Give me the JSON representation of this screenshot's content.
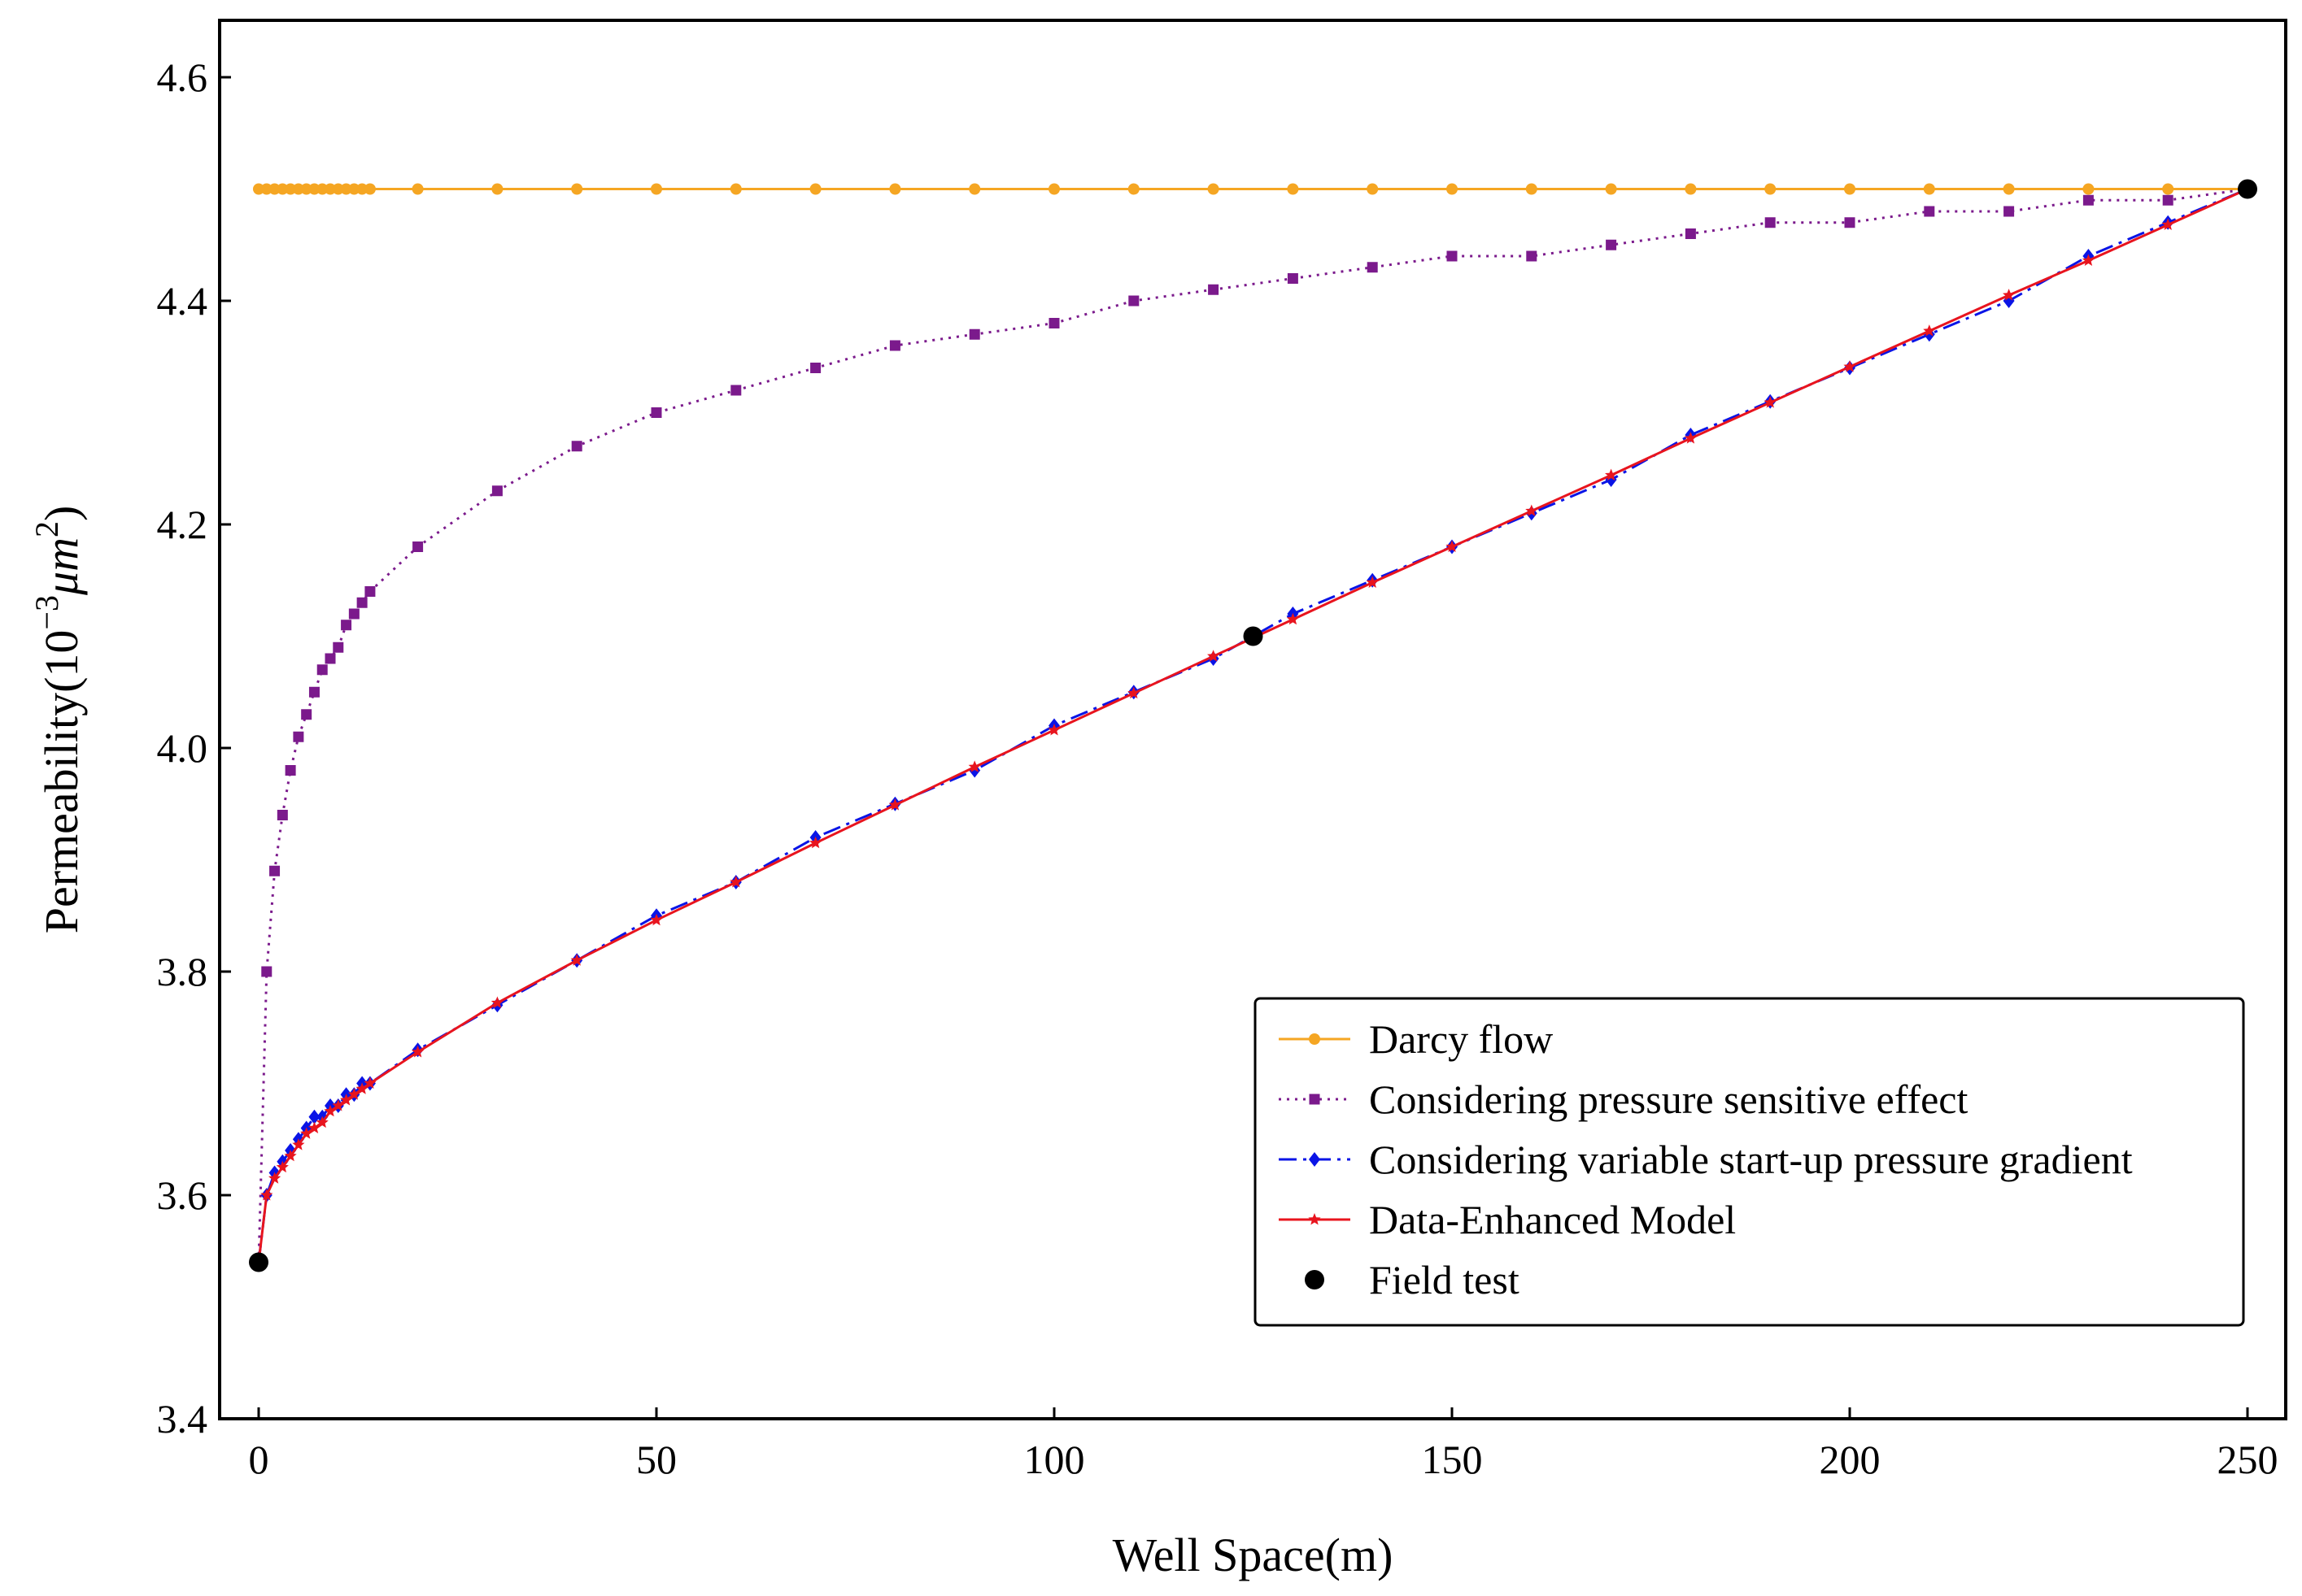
{
  "chart_data": {
    "type": "line",
    "xlabel": "Well Space(m)",
    "ylabel": {
      "prefix": "Permeability(10",
      "exp1": "−3",
      "unit": "μm",
      "exp2": "2",
      "suffix": ")"
    },
    "xlim": [
      -5,
      255
    ],
    "ylim": [
      3.4,
      4.65
    ],
    "xticks": [
      0,
      50,
      100,
      150,
      200,
      250
    ],
    "xtick_labels": [
      "0",
      "50",
      "100",
      "150",
      "200",
      "250"
    ],
    "yticks": [
      3.4,
      3.6,
      3.8,
      4.0,
      4.2,
      4.4,
      4.6
    ],
    "ytick_labels": [
      "3.4",
      "3.6",
      "3.8",
      "4.0",
      "4.2",
      "4.4",
      "4.6"
    ],
    "legend_position": "lower-right",
    "series": [
      {
        "name": "Darcy flow",
        "color": "#f5a623",
        "line_style": "solid",
        "marker": "circle",
        "x": [
          0,
          1,
          2,
          3,
          4,
          5,
          6,
          7,
          8,
          9,
          10,
          11,
          12,
          13,
          14,
          20,
          30,
          40,
          50,
          60,
          70,
          80,
          90,
          100,
          110,
          120,
          130,
          140,
          150,
          160,
          170,
          180,
          190,
          200,
          210,
          220,
          230,
          240,
          250
        ],
        "y": [
          4.5,
          4.5,
          4.5,
          4.5,
          4.5,
          4.5,
          4.5,
          4.5,
          4.5,
          4.5,
          4.5,
          4.5,
          4.5,
          4.5,
          4.5,
          4.5,
          4.5,
          4.5,
          4.5,
          4.5,
          4.5,
          4.5,
          4.5,
          4.5,
          4.5,
          4.5,
          4.5,
          4.5,
          4.5,
          4.5,
          4.5,
          4.5,
          4.5,
          4.5,
          4.5,
          4.5,
          4.5,
          4.5,
          4.5
        ]
      },
      {
        "name": "Considering pressure sensitive effect",
        "color": "#7b1a8c",
        "line_style": "dotted",
        "marker": "square",
        "x": [
          0,
          1,
          2,
          3,
          4,
          5,
          6,
          7,
          8,
          9,
          10,
          11,
          12,
          13,
          14,
          20,
          30,
          40,
          50,
          60,
          70,
          80,
          90,
          100,
          110,
          120,
          130,
          140,
          150,
          160,
          170,
          180,
          190,
          200,
          210,
          220,
          230,
          240,
          250
        ],
        "y": [
          3.54,
          3.8,
          3.89,
          3.94,
          3.98,
          4.01,
          4.03,
          4.05,
          4.07,
          4.08,
          4.09,
          4.11,
          4.12,
          4.13,
          4.14,
          4.18,
          4.23,
          4.27,
          4.3,
          4.32,
          4.34,
          4.36,
          4.37,
          4.38,
          4.4,
          4.41,
          4.42,
          4.43,
          4.44,
          4.44,
          4.45,
          4.46,
          4.47,
          4.47,
          4.48,
          4.48,
          4.49,
          4.49,
          4.5
        ]
      },
      {
        "name": "Considering variable start-up pressure gradient",
        "color": "#0a14e6",
        "line_style": "dashdot",
        "marker": "diamond",
        "x": [
          0,
          1,
          2,
          3,
          4,
          5,
          6,
          7,
          8,
          9,
          10,
          11,
          12,
          13,
          14,
          20,
          30,
          40,
          50,
          60,
          70,
          80,
          90,
          100,
          110,
          120,
          130,
          140,
          150,
          160,
          170,
          180,
          190,
          200,
          210,
          220,
          230,
          240,
          250
        ],
        "y": [
          3.54,
          3.6,
          3.62,
          3.63,
          3.64,
          3.65,
          3.66,
          3.67,
          3.67,
          3.68,
          3.68,
          3.69,
          3.69,
          3.7,
          3.7,
          3.73,
          3.77,
          3.81,
          3.85,
          3.88,
          3.92,
          3.95,
          3.98,
          4.02,
          4.05,
          4.08,
          4.12,
          4.15,
          4.18,
          4.21,
          4.24,
          4.28,
          4.31,
          4.34,
          4.37,
          4.4,
          4.44,
          4.47,
          4.5
        ]
      },
      {
        "name": "Data-Enhanced Model",
        "color": "#e8141e",
        "line_style": "solid",
        "marker": "star",
        "x": [
          0,
          1,
          2,
          3,
          4,
          5,
          6,
          7,
          8,
          9,
          10,
          11,
          12,
          13,
          14,
          20,
          30,
          40,
          50,
          60,
          70,
          80,
          90,
          100,
          110,
          120,
          130,
          140,
          150,
          160,
          170,
          180,
          190,
          200,
          210,
          220,
          230,
          240,
          250
        ],
        "y": [
          3.54,
          3.6,
          3.615,
          3.625,
          3.635,
          3.645,
          3.655,
          3.66,
          3.665,
          3.675,
          3.68,
          3.685,
          3.69,
          3.695,
          3.7,
          3.728,
          3.772,
          3.81,
          3.846,
          3.88,
          3.915,
          3.949,
          3.983,
          4.016,
          4.049,
          4.082,
          4.115,
          4.148,
          4.18,
          4.212,
          4.244,
          4.277,
          4.309,
          4.341,
          4.373,
          4.405,
          4.436,
          4.468,
          4.5
        ]
      },
      {
        "name": "Field test",
        "color": "#000000",
        "line_style": "none",
        "marker": "dot",
        "x": [
          0,
          125,
          250
        ],
        "y": [
          3.54,
          4.1,
          4.5
        ]
      }
    ]
  }
}
